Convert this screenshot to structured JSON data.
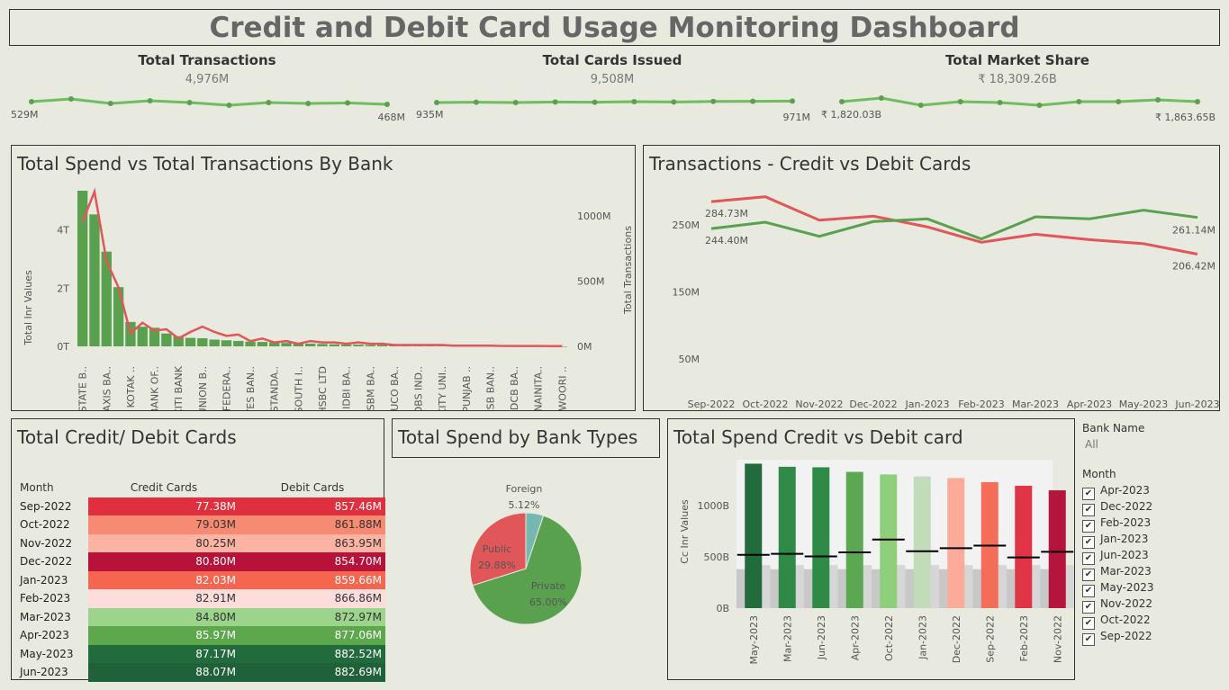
{
  "title": "Credit and Debit Card Usage Monitoring Dashboard",
  "kpis": [
    {
      "title": "Total Transactions",
      "value": "4,976M",
      "first": "529M",
      "last": "468M",
      "spark": [
        0.55,
        0.7,
        0.45,
        0.6,
        0.5,
        0.35,
        0.5,
        0.45,
        0.48,
        0.4
      ]
    },
    {
      "title": "Total Cards Issued",
      "value": "9,508M",
      "first": "935M",
      "last": "971M",
      "spark": [
        0.5,
        0.52,
        0.5,
        0.53,
        0.52,
        0.55,
        0.53,
        0.56,
        0.57,
        0.58
      ]
    },
    {
      "title": "Total Market Share",
      "value": "₹ 18,309.26B",
      "first": "₹ 1,820.03B",
      "last": "₹ 1,863.65B",
      "spark": [
        0.55,
        0.75,
        0.35,
        0.55,
        0.5,
        0.35,
        0.55,
        0.55,
        0.65,
        0.55
      ]
    }
  ],
  "bank_chart": {
    "title": "Total Spend vs Total Transactions By Bank",
    "ylabel": "Total Inr Values",
    "y_ticks": [
      "4T",
      "2T",
      "0T"
    ],
    "y2_ticks": [
      "1000M",
      "500M",
      "0M"
    ],
    "bar_color": "#59a14f",
    "line_color": "#e15759",
    "categories": [
      "STATE B..",
      "AXIS BA..",
      "KOTAK ..",
      "BANK OF..",
      "CITI BANK",
      "UNION B..",
      "FEDERA..",
      "YES BAN..",
      "STANDA..",
      "SOUTH I..",
      "HSBC LTD",
      "IDBI BA..",
      "SBM BA..",
      "UCO BA..",
      "DBS IND..",
      "CITY UNI..",
      "PUNJAB ..",
      "CSB BAN..",
      "DCB BA..",
      "NAINITA..",
      "WOORI .."
    ],
    "bars_all": [
      4.6,
      3.9,
      2.8,
      1.75,
      0.72,
      0.58,
      0.55,
      0.38,
      0.3,
      0.25,
      0.24,
      0.2,
      0.18,
      0.16,
      0.14,
      0.13,
      0.12,
      0.1,
      0.09,
      0.08,
      0.07,
      0.06,
      0.05,
      0.05,
      0.04,
      0.04,
      0.03,
      0.03,
      0.02,
      0.02,
      0.02,
      0.01,
      0.01,
      0.01,
      0.01,
      0.0,
      0.0,
      0.0,
      0.0,
      0.0,
      0.0
    ],
    "line_all": [
      950,
      1180,
      650,
      450,
      100,
      180,
      120,
      130,
      60,
      110,
      150,
      110,
      80,
      90,
      40,
      60,
      30,
      40,
      20,
      40,
      30,
      30,
      20,
      30,
      20,
      20,
      10,
      10,
      10,
      10,
      10,
      5,
      5,
      5,
      5,
      3,
      3,
      3,
      3,
      2,
      2
    ]
  },
  "cd_chart": {
    "title": "Transactions - Credit vs Debit Cards",
    "ylabel": "Total Transactions",
    "y_ticks": [
      "250M",
      "150M",
      "50M"
    ],
    "months": [
      "Sep-2022",
      "Oct-2022",
      "Nov-2022",
      "Dec-2022",
      "Jan-2023",
      "Feb-2023",
      "Mar-2023",
      "Apr-2023",
      "May-2023",
      "Jun-2023"
    ],
    "series": [
      {
        "name": "",
        "color": "#e15759",
        "values": [
          284.73,
          292,
          257,
          263,
          247,
          224,
          236,
          228,
          222,
          206.42
        ],
        "first_label": "284.73M",
        "last_label": "206.42M"
      },
      {
        "name": "",
        "color": "#59a14f",
        "values": [
          244.4,
          254,
          233,
          255,
          259,
          229,
          262,
          259,
          272,
          261.14
        ],
        "first_label": "244.40M",
        "last_label": "261.14M"
      }
    ]
  },
  "table": {
    "title": "Total Credit/ Debit Cards",
    "headers": [
      "Month",
      "Credit Cards",
      "Debit Cards"
    ],
    "rows": [
      {
        "month": "Sep-2022",
        "credit": "77.38M",
        "debit": "857.46M",
        "color": "#e0303f"
      },
      {
        "month": "Oct-2022",
        "credit": "79.03M",
        "debit": "861.88M",
        "color": "#f78a72"
      },
      {
        "month": "Nov-2022",
        "credit": "80.25M",
        "debit": "863.95M",
        "color": "#fbb3a3"
      },
      {
        "month": "Dec-2022",
        "credit": "80.80M",
        "debit": "854.70M",
        "color": "#b7133a"
      },
      {
        "month": "Jan-2023",
        "credit": "82.03M",
        "debit": "859.66M",
        "color": "#f4664f"
      },
      {
        "month": "Feb-2023",
        "credit": "82.91M",
        "debit": "866.86M",
        "color": "#fddcdc"
      },
      {
        "month": "Mar-2023",
        "credit": "84.80M",
        "debit": "872.97M",
        "color": "#9bd48a"
      },
      {
        "month": "Apr-2023",
        "credit": "85.97M",
        "debit": "877.06M",
        "color": "#5da84d"
      },
      {
        "month": "May-2023",
        "credit": "87.17M",
        "debit": "882.52M",
        "color": "#226b3c"
      },
      {
        "month": "Jun-2023",
        "credit": "88.07M",
        "debit": "882.69M",
        "color": "#1f6138"
      }
    ]
  },
  "pie": {
    "title": "Total Spend by Bank Types",
    "slices": [
      {
        "name": "Foreign",
        "pct": "5.12%",
        "value": 5.12,
        "color": "#76b7b2"
      },
      {
        "name": "Private",
        "pct": "65.00%",
        "value": 65.0,
        "color": "#59a14f"
      },
      {
        "name": "Public",
        "pct": "29.88%",
        "value": 29.88,
        "color": "#e15759"
      }
    ]
  },
  "spend_cd": {
    "title": "Total Spend Credit vs Debit card",
    "ylabel": "Cc Inr Values",
    "y_ticks": [
      "1000B",
      "500B",
      "0B"
    ],
    "months": [
      "May-2023",
      "Mar-2023",
      "Jun-2023",
      "Apr-2023",
      "Oct-2022",
      "Jan-2023",
      "Dec-2022",
      "Sep-2022",
      "Feb-2023",
      "Nov-2022"
    ],
    "values": [
      1410,
      1380,
      1375,
      1330,
      1305,
      1285,
      1270,
      1230,
      1195,
      1150
    ],
    "ref": [
      520,
      530,
      505,
      545,
      670,
      555,
      585,
      610,
      495,
      550
    ],
    "colors": [
      "#226b3c",
      "#2f8a47",
      "#2f8a47",
      "#5aa84f",
      "#8fcf7a",
      "#c2dbb8",
      "#fcaa9a",
      "#f36d59",
      "#df3546",
      "#b5143c"
    ]
  },
  "filters": {
    "bank_label": "Bank Name",
    "bank_value": "All",
    "month_label": "Month",
    "months": [
      "Apr-2023",
      "Dec-2022",
      "Feb-2023",
      "Jan-2023",
      "Jun-2023",
      "Mar-2023",
      "May-2023",
      "Nov-2022",
      "Oct-2022",
      "Sep-2022"
    ]
  }
}
